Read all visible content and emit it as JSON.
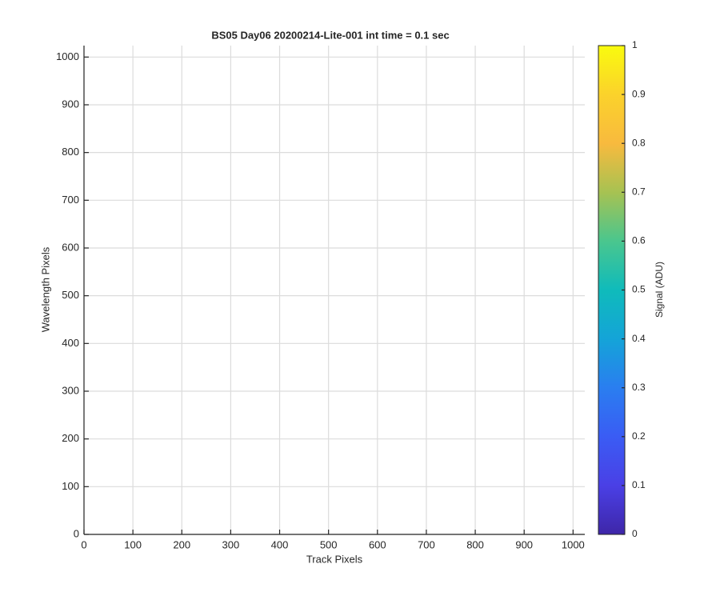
{
  "chart_data": {
    "type": "image",
    "title": "BS05 Day06 20200214-Lite-001 int time = 0.1 sec",
    "xlabel": "Track Pixels",
    "ylabel": "Wavelength Pixels",
    "xlim": [
      0,
      1024
    ],
    "ylim": [
      0,
      1024
    ],
    "xticks": [
      0,
      100,
      200,
      300,
      400,
      500,
      600,
      700,
      800,
      900,
      1000
    ],
    "yticks": [
      0,
      100,
      200,
      300,
      400,
      500,
      600,
      700,
      800,
      900,
      1000
    ],
    "grid": true,
    "colorbar": {
      "label": "Signal (ADU)",
      "clim": [
        0,
        1
      ],
      "cticks": [
        0,
        0.1,
        0.2,
        0.3,
        0.4,
        0.5,
        0.6,
        0.7,
        0.8,
        0.9,
        1
      ],
      "colormap": [
        "#3e26a8",
        "#4a40e6",
        "#3a5cf4",
        "#2a7ef0",
        "#14a4d8",
        "#0fbbbb",
        "#4ac68e",
        "#a7c252",
        "#f8ba3e",
        "#fbd22b",
        "#f9fb0e"
      ]
    }
  }
}
